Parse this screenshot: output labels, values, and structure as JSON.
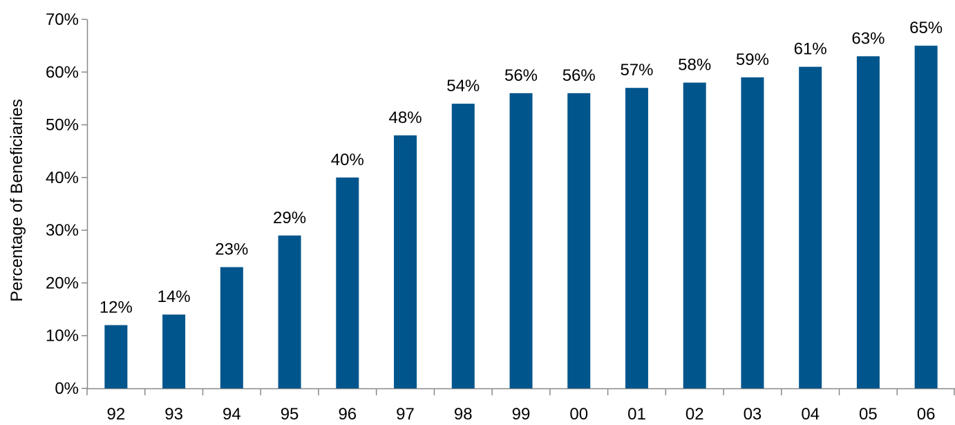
{
  "chart_data": {
    "type": "bar",
    "title": "",
    "xlabel": "",
    "ylabel": "Percentage of Beneficiaries",
    "categories": [
      "92",
      "93",
      "94",
      "95",
      "96",
      "97",
      "98",
      "99",
      "00",
      "01",
      "02",
      "03",
      "04",
      "05",
      "06"
    ],
    "values": [
      12,
      14,
      23,
      29,
      40,
      48,
      54,
      56,
      56,
      57,
      58,
      59,
      61,
      63,
      65
    ],
    "data_labels": [
      "12%",
      "14%",
      "23%",
      "29%",
      "40%",
      "48%",
      "54%",
      "56%",
      "56%",
      "57%",
      "58%",
      "59%",
      "61%",
      "63%",
      "65%"
    ],
    "ylim": [
      0,
      70
    ],
    "yticks": [
      0,
      10,
      20,
      30,
      40,
      50,
      60,
      70
    ],
    "ytick_labels": [
      "0%",
      "10%",
      "20%",
      "30%",
      "40%",
      "50%",
      "60%",
      "70%"
    ],
    "grid": false,
    "legend": "none",
    "bar_color": "#00558C"
  }
}
